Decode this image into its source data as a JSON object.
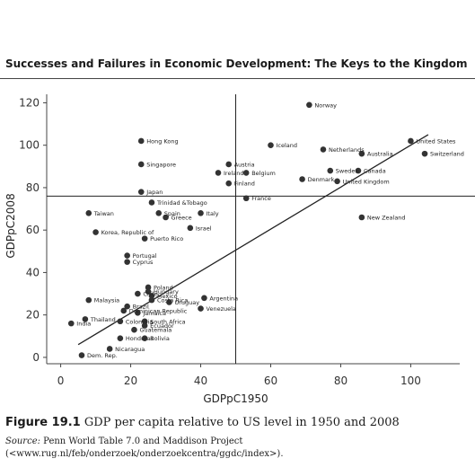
{
  "page": {
    "running_head": "Successes and Failures in Economic Development: The Keys to the Kingdom",
    "figure_label": "Figure 19.1",
    "figure_caption": "GDP per capita relative to US level in 1950 and 2008",
    "source_label": "Source:",
    "source_text": "Penn World Table 7.0 and Maddison Project (<www.rug.nl/feb/onderzoek/onderzoekcentra/ggdc/index>)."
  },
  "chart_data": {
    "type": "scatter",
    "xlabel": "GDPpC1950",
    "ylabel": "GDPpC2008",
    "xlim": [
      -4,
      114
    ],
    "ylim": [
      -3,
      124
    ],
    "xticks": [
      "0",
      "20",
      "40",
      "60",
      "80",
      "100"
    ],
    "xtick_values": [
      0,
      20,
      40,
      60,
      80,
      100
    ],
    "yticks": [
      "0",
      "20",
      "40",
      "60",
      "80",
      "100",
      "120"
    ],
    "ytick_values": [
      0,
      20,
      40,
      60,
      80,
      100,
      120
    ],
    "grid": false,
    "reference_lines": {
      "x": 50,
      "y": 76
    },
    "fit_line": [
      [
        5,
        6
      ],
      [
        105,
        105
      ]
    ],
    "colors": {
      "points": "#333333",
      "lines": "#222222",
      "axis": "#444444"
    },
    "points": [
      {
        "label": "Norway",
        "x": 71,
        "y": 119
      },
      {
        "label": "United States",
        "x": 100,
        "y": 102
      },
      {
        "label": "Switzerland",
        "x": 104,
        "y": 96
      },
      {
        "label": "Hong Kong",
        "x": 23,
        "y": 102
      },
      {
        "label": "Iceland",
        "x": 60,
        "y": 100
      },
      {
        "label": "Netherlands",
        "x": 75,
        "y": 98
      },
      {
        "label": "Australia",
        "x": 86,
        "y": 96
      },
      {
        "label": "Singapore",
        "x": 23,
        "y": 91
      },
      {
        "label": "Austria",
        "x": 48,
        "y": 91
      },
      {
        "label": "Ireland",
        "x": 45,
        "y": 87
      },
      {
        "label": "Belgium",
        "x": 53,
        "y": 87
      },
      {
        "label": "Sweden",
        "x": 77,
        "y": 88
      },
      {
        "label": "Canada",
        "x": 85,
        "y": 88
      },
      {
        "label": "Finland",
        "x": 48,
        "y": 82
      },
      {
        "label": "Denmark",
        "x": 69,
        "y": 84
      },
      {
        "label": "United Kingdom",
        "x": 79,
        "y": 83
      },
      {
        "label": "Japan",
        "x": 23,
        "y": 78
      },
      {
        "label": "France",
        "x": 53,
        "y": 75
      },
      {
        "label": "Trinidad &Tobago",
        "x": 26,
        "y": 73
      },
      {
        "label": "Spain",
        "x": 28,
        "y": 68
      },
      {
        "label": "Greece",
        "x": 30,
        "y": 66
      },
      {
        "label": "Italy",
        "x": 40,
        "y": 68
      },
      {
        "label": "Taiwan",
        "x": 8,
        "y": 68
      },
      {
        "label": "New Zealand",
        "x": 86,
        "y": 66
      },
      {
        "label": "Israel",
        "x": 37,
        "y": 61
      },
      {
        "label": "Korea, Republic of",
        "x": 10,
        "y": 59
      },
      {
        "label": "Puerto Rico",
        "x": 24,
        "y": 56
      },
      {
        "label": "Portugal",
        "x": 19,
        "y": 48
      },
      {
        "label": "Cyprus",
        "x": 19,
        "y": 45
      },
      {
        "label": "Poland",
        "x": 25,
        "y": 33
      },
      {
        "label": "Hungary",
        "x": 25,
        "y": 31
      },
      {
        "label": "Chile",
        "x": 22,
        "y": 30
      },
      {
        "label": "Mexico",
        "x": 26,
        "y": 29
      },
      {
        "label": "Costa Rica",
        "x": 26,
        "y": 27
      },
      {
        "label": "Uruguay",
        "x": 31,
        "y": 26
      },
      {
        "label": "Argentina",
        "x": 41,
        "y": 28
      },
      {
        "label": "Venezuela",
        "x": 40,
        "y": 23
      },
      {
        "label": "Malaysia",
        "x": 8,
        "y": 27
      },
      {
        "label": "Brazil",
        "x": 19,
        "y": 24
      },
      {
        "label": "Dominican Republic",
        "x": 18,
        "y": 22
      },
      {
        "label": "Jamaica",
        "x": 22,
        "y": 21
      },
      {
        "label": "Thailand",
        "x": 7,
        "y": 18
      },
      {
        "label": "Colombia",
        "x": 17,
        "y": 17
      },
      {
        "label": "South Africa",
        "x": 24,
        "y": 17
      },
      {
        "label": "Ecuador",
        "x": 24,
        "y": 15
      },
      {
        "label": "Guatemala",
        "x": 21,
        "y": 13
      },
      {
        "label": "India",
        "x": 3,
        "y": 16
      },
      {
        "label": "Bolivia",
        "x": 24,
        "y": 9
      },
      {
        "label": "Honduras",
        "x": 17,
        "y": 9
      },
      {
        "label": "Nicaragua",
        "x": 14,
        "y": 4
      },
      {
        "label": "Dem. Rep.",
        "x": 6,
        "y": 1
      }
    ]
  }
}
